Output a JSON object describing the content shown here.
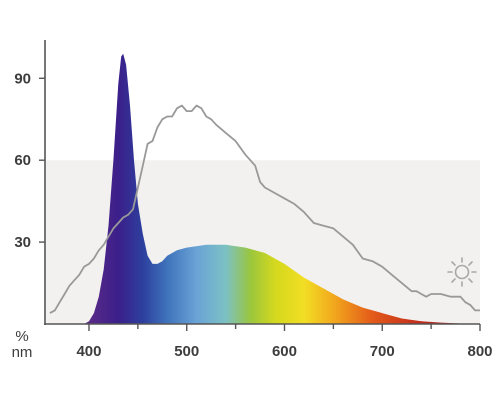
{
  "chart_data": {
    "type": "area",
    "title": "",
    "xlabel": "nm",
    "ylabel": "%",
    "xlim": [
      355,
      800
    ],
    "ylim": [
      0,
      100
    ],
    "x_ticks": [
      400,
      500,
      600,
      700,
      800
    ],
    "x_tick_labels": [
      "400",
      "500",
      "600",
      "700",
      "800"
    ],
    "y_ticks": [
      30,
      60,
      90
    ],
    "y_tick_labels": [
      "30",
      "60",
      "90"
    ],
    "grid": false,
    "background_bands": [
      [
        30,
        60
      ],
      [
        90,
        100
      ]
    ],
    "legend": "none",
    "series": [
      {
        "kind": "spectrum-area",
        "fill": "visible-spectrum-gradient",
        "points": [
          [
            395,
            0
          ],
          [
            400,
            1
          ],
          [
            405,
            4
          ],
          [
            410,
            10
          ],
          [
            415,
            20
          ],
          [
            420,
            36
          ],
          [
            425,
            60
          ],
          [
            430,
            88
          ],
          [
            433,
            98
          ],
          [
            435,
            99
          ],
          [
            438,
            95
          ],
          [
            442,
            80
          ],
          [
            446,
            60
          ],
          [
            450,
            44
          ],
          [
            455,
            33
          ],
          [
            460,
            25
          ],
          [
            465,
            22
          ],
          [
            470,
            22
          ],
          [
            475,
            23
          ],
          [
            480,
            25
          ],
          [
            490,
            27
          ],
          [
            500,
            28
          ],
          [
            520,
            29
          ],
          [
            540,
            29
          ],
          [
            560,
            28
          ],
          [
            580,
            26
          ],
          [
            600,
            22
          ],
          [
            620,
            17
          ],
          [
            640,
            13
          ],
          [
            660,
            9
          ],
          [
            680,
            6
          ],
          [
            700,
            4
          ],
          [
            720,
            2
          ],
          [
            740,
            1
          ],
          [
            760,
            0.5
          ],
          [
            780,
            0.2
          ],
          [
            800,
            0
          ]
        ]
      },
      {
        "kind": "daylight-line",
        "color": "#999999",
        "points": [
          [
            360,
            4
          ],
          [
            365,
            5
          ],
          [
            370,
            8
          ],
          [
            375,
            11
          ],
          [
            380,
            14
          ],
          [
            385,
            16
          ],
          [
            390,
            18
          ],
          [
            395,
            21
          ],
          [
            400,
            22
          ],
          [
            405,
            24
          ],
          [
            410,
            27
          ],
          [
            415,
            29
          ],
          [
            420,
            32
          ],
          [
            425,
            35
          ],
          [
            430,
            37
          ],
          [
            435,
            39
          ],
          [
            440,
            40
          ],
          [
            445,
            42
          ],
          [
            450,
            50
          ],
          [
            455,
            58
          ],
          [
            460,
            66
          ],
          [
            465,
            67
          ],
          [
            470,
            72
          ],
          [
            475,
            75
          ],
          [
            480,
            76
          ],
          [
            485,
            76
          ],
          [
            490,
            79
          ],
          [
            495,
            80
          ],
          [
            500,
            78
          ],
          [
            505,
            78
          ],
          [
            510,
            80
          ],
          [
            515,
            79
          ],
          [
            520,
            76
          ],
          [
            525,
            75
          ],
          [
            530,
            73
          ],
          [
            540,
            70
          ],
          [
            550,
            67
          ],
          [
            560,
            62
          ],
          [
            570,
            58
          ],
          [
            575,
            52
          ],
          [
            580,
            50
          ],
          [
            590,
            48
          ],
          [
            600,
            46
          ],
          [
            610,
            44
          ],
          [
            620,
            41
          ],
          [
            630,
            37
          ],
          [
            640,
            36
          ],
          [
            650,
            35
          ],
          [
            660,
            32
          ],
          [
            670,
            29
          ],
          [
            680,
            24
          ],
          [
            690,
            23
          ],
          [
            700,
            21
          ],
          [
            710,
            18
          ],
          [
            720,
            15
          ],
          [
            730,
            12
          ],
          [
            735,
            12
          ],
          [
            740,
            11
          ],
          [
            745,
            10
          ],
          [
            750,
            11
          ],
          [
            760,
            11
          ],
          [
            770,
            10
          ],
          [
            780,
            10
          ],
          [
            785,
            8
          ],
          [
            790,
            7
          ],
          [
            795,
            5
          ],
          [
            800,
            5
          ]
        ]
      }
    ]
  },
  "icons": {
    "sun": "sun-icon"
  },
  "colors": {
    "axis": "#555555",
    "band": "#f2f1ef",
    "daylight": "#999999"
  }
}
